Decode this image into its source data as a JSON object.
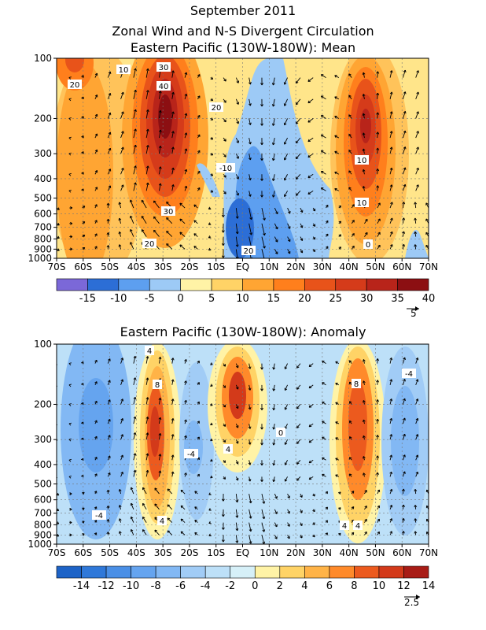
{
  "header": {
    "line1": "September 2011",
    "line2": "Zonal Wind and N-S Divergent Circulation"
  },
  "chart_data": [
    {
      "type": "heatmap",
      "title": "Eastern Pacific (130W-180W): Mean",
      "x_ticks": [
        "70S",
        "60S",
        "50S",
        "40S",
        "30S",
        "20S",
        "10S",
        "EQ",
        "10N",
        "20N",
        "30N",
        "40N",
        "50N",
        "60N",
        "70N"
      ],
      "y_ticks": [
        "100",
        "200",
        "300",
        "400",
        "500",
        "600",
        "700",
        "800",
        "900",
        "1000"
      ],
      "y_scale": "log-pressure",
      "colorbar": {
        "labels": [
          "-15",
          "-10",
          "-5",
          "0",
          "5",
          "10",
          "15",
          "20",
          "25",
          "30",
          "35",
          "40"
        ],
        "colors": [
          "#7b68d8",
          "#2c6ed6",
          "#5d9ff0",
          "#9dcaf6",
          "#fff3a6",
          "#ffd366",
          "#ffa533",
          "#ff7f1c",
          "#e8531a",
          "#d53b1a",
          "#b8241a",
          "#8c0f12"
        ]
      },
      "vector_reference": "5",
      "contour_labels": [
        "10",
        "20",
        "30",
        "40",
        "20",
        "30",
        "20",
        "10",
        "10",
        "0",
        "-10",
        "20"
      ],
      "features": [
        {
          "lat": 30,
          "lat_hemisphere": "S",
          "level": 200,
          "value": 40
        },
        {
          "lat": 45,
          "lat_hemisphere": "N",
          "level": 200,
          "value": 35
        },
        {
          "lat": 65,
          "lat_hemisphere": "S",
          "level": 100,
          "value": 25
        },
        {
          "lat": 0,
          "lat_hemisphere": "EQ",
          "level": 800,
          "value": -10
        }
      ]
    },
    {
      "type": "heatmap",
      "title": "Eastern Pacific (130W-180W): Anomaly",
      "x_ticks": [
        "70S",
        "60S",
        "50S",
        "40S",
        "30S",
        "20S",
        "10S",
        "EQ",
        "10N",
        "20N",
        "30N",
        "40N",
        "50N",
        "60N",
        "70N"
      ],
      "y_ticks": [
        "100",
        "200",
        "300",
        "400",
        "500",
        "600",
        "700",
        "800",
        "900",
        "1000"
      ],
      "y_scale": "log-pressure",
      "colorbar": {
        "labels": [
          "-14",
          "-12",
          "-10",
          "-8",
          "-6",
          "-4",
          "-2",
          "0",
          "2",
          "4",
          "6",
          "8",
          "10",
          "12",
          "14"
        ],
        "colors": [
          "#1d63c7",
          "#2f78d9",
          "#4a8fe6",
          "#65a4ef",
          "#82b8f4",
          "#a1ccf6",
          "#bde0f8",
          "#d6f0f8",
          "#fff3a6",
          "#ffd366",
          "#ffb347",
          "#ff8a2a",
          "#ec5a1e",
          "#d33a1a",
          "#a81c16"
        ]
      },
      "vector_reference": "2.5",
      "contour_labels": [
        "4",
        "8",
        "4",
        "-4",
        "4",
        "8",
        "4",
        "0",
        "-4",
        "-4",
        "4"
      ],
      "features": [
        {
          "lat": 30,
          "lat_hemisphere": "S",
          "level": 300,
          "value": 10
        },
        {
          "lat": 5,
          "lat_hemisphere": "S",
          "level": 200,
          "value": 10
        },
        {
          "lat": 42,
          "lat_hemisphere": "N",
          "level": 300,
          "value": 10
        },
        {
          "lat": 62,
          "lat_hemisphere": "S",
          "level": 250,
          "value": -8
        },
        {
          "lat": 63,
          "lat_hemisphere": "N",
          "level": 300,
          "value": -6
        }
      ]
    }
  ]
}
